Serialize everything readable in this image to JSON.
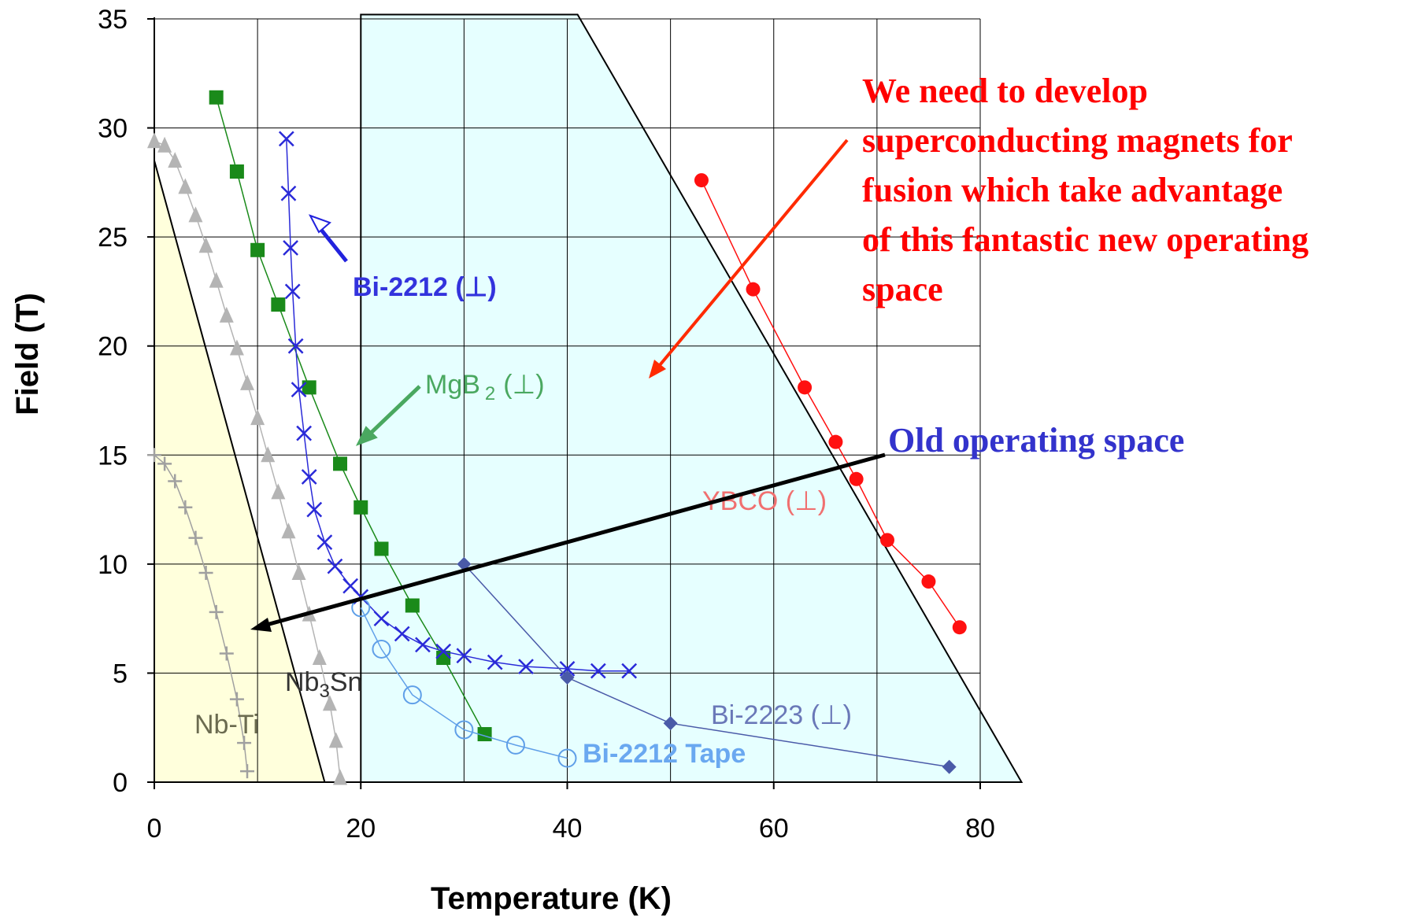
{
  "chart_data": {
    "type": "scatter",
    "xlabel": "Temperature (K)",
    "ylabel": "Field (T)",
    "xlim": [
      0,
      80
    ],
    "ylim": [
      0,
      35
    ],
    "x_ticks": [
      "0",
      "20",
      "40",
      "60",
      "80"
    ],
    "y_ticks": [
      "0",
      "5",
      "10",
      "15",
      "20",
      "25",
      "30",
      "35"
    ],
    "grid": true,
    "series": [
      {
        "name": "Nb-Ti",
        "color": "#a0a0a0",
        "marker": "plus",
        "points": [
          [
            0,
            15
          ],
          [
            1,
            14.6
          ],
          [
            2,
            13.8
          ],
          [
            3,
            12.6
          ],
          [
            4,
            11.2
          ],
          [
            5,
            9.6
          ],
          [
            6,
            7.8
          ],
          [
            7,
            5.9
          ],
          [
            8,
            3.8
          ],
          [
            8.7,
            1.8
          ],
          [
            9,
            0.5
          ]
        ]
      },
      {
        "name": "Nb3Sn",
        "color": "#b4b4b4",
        "marker": "triangle",
        "points": [
          [
            0,
            29.4
          ],
          [
            1,
            29.2
          ],
          [
            2,
            28.5
          ],
          [
            3,
            27.3
          ],
          [
            4,
            26
          ],
          [
            5,
            24.6
          ],
          [
            6,
            23
          ],
          [
            7,
            21.4
          ],
          [
            8,
            19.9
          ],
          [
            9,
            18.3
          ],
          [
            10,
            16.7
          ],
          [
            11,
            15
          ],
          [
            12,
            13.3
          ],
          [
            13,
            11.5
          ],
          [
            14,
            9.6
          ],
          [
            15,
            7.7
          ],
          [
            16,
            5.7
          ],
          [
            17,
            3.6
          ],
          [
            17.6,
            1.9
          ],
          [
            18,
            0.2
          ]
        ]
      },
      {
        "name": "MgB2 (⊥)",
        "color": "#1a8a1a",
        "marker": "square",
        "points": [
          [
            6,
            31.4
          ],
          [
            8,
            28
          ],
          [
            10,
            24.4
          ],
          [
            12,
            21.9
          ],
          [
            15,
            18.1
          ],
          [
            18,
            14.6
          ],
          [
            20,
            12.6
          ],
          [
            22,
            10.7
          ],
          [
            25,
            8.1
          ],
          [
            28,
            5.7
          ],
          [
            32,
            2.2
          ]
        ]
      },
      {
        "name": "Bi-2212 (⊥)",
        "color": "#2a2ad8",
        "marker": "cross",
        "points": [
          [
            12.8,
            29.5
          ],
          [
            13,
            27
          ],
          [
            13.2,
            24.5
          ],
          [
            13.4,
            22.5
          ],
          [
            13.7,
            20
          ],
          [
            14,
            18
          ],
          [
            14.5,
            16
          ],
          [
            15,
            14
          ],
          [
            15.5,
            12.5
          ],
          [
            16.5,
            11
          ],
          [
            17.5,
            9.9
          ],
          [
            19,
            9
          ],
          [
            20,
            8.5
          ],
          [
            22,
            7.5
          ],
          [
            24,
            6.8
          ],
          [
            26,
            6.3
          ],
          [
            28,
            6
          ],
          [
            30,
            5.8
          ],
          [
            33,
            5.5
          ],
          [
            36,
            5.3
          ],
          [
            40,
            5.2
          ],
          [
            43,
            5.1
          ],
          [
            46,
            5.1
          ]
        ]
      },
      {
        "name": "Bi-2212 Tape",
        "color": "#5f9fe8",
        "marker": "circle",
        "points": [
          [
            20,
            8
          ],
          [
            22,
            6.1
          ],
          [
            25,
            4
          ],
          [
            30,
            2.4
          ],
          [
            35,
            1.7
          ],
          [
            40,
            1.1
          ]
        ]
      },
      {
        "name": "Bi-2223 (⊥)",
        "color": "#4a5aa8",
        "marker": "diamond",
        "points": [
          [
            30,
            10
          ],
          [
            40,
            4.8
          ],
          [
            50,
            2.7
          ],
          [
            77,
            0.7
          ]
        ]
      },
      {
        "name": "YBCO (⊥)",
        "color": "#ff1010",
        "marker": "circle",
        "points": [
          [
            53,
            27.6
          ],
          [
            58,
            22.6
          ],
          [
            63,
            18.1
          ],
          [
            66,
            15.6
          ],
          [
            68,
            13.9
          ],
          [
            71,
            11.1
          ],
          [
            75,
            9.2
          ],
          [
            78,
            7.1
          ]
        ]
      }
    ],
    "regions": [
      {
        "name": "old-operating-space",
        "color": "#ffffdc",
        "points": [
          [
            0,
            28.5
          ],
          [
            16.5,
            0
          ],
          [
            0,
            0
          ]
        ]
      },
      {
        "name": "new-operating-space",
        "color": "#e6ffff",
        "points": [
          [
            20,
            35.2
          ],
          [
            41,
            35.2
          ],
          [
            84,
            0
          ],
          [
            20,
            0
          ]
        ]
      }
    ]
  },
  "labels": {
    "nbti": "Nb-Ti",
    "nb3sn_main": "Nb",
    "nb3sn_sub": "3",
    "nb3sn_tail": "Sn",
    "mgb2_main": "MgB",
    "mgb2_sub": "2",
    "mgb2_tail": "(⊥)",
    "bi2212": "Bi-2212 (⊥)",
    "bi2212_tape": "Bi-2212 Tape",
    "bi2223": "Bi-2223 (⊥)",
    "ybco": "YBCO (⊥)",
    "old_space": "Old operating space",
    "annotation_lines": [
      "We need to develop",
      "superconducting magnets for",
      "fusion which take advantage",
      "of this fantastic new operating",
      "space"
    ]
  }
}
